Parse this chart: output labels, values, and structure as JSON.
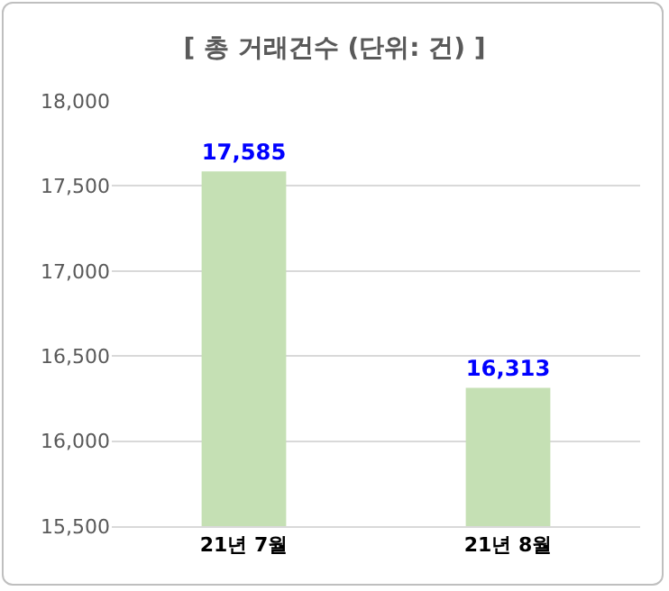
{
  "chart_data": {
    "type": "bar",
    "title": "[ 총 거래건수 (단위: 건) ]",
    "categories": [
      "21년 7월",
      "21년 8월"
    ],
    "values": [
      17585,
      16313
    ],
    "value_labels": [
      "17,585",
      "16,313"
    ],
    "color": "#c5e0b4",
    "ylim": [
      15500,
      18000
    ],
    "yticks": [
      {
        "value": 15500,
        "label": "15,500"
      },
      {
        "value": 16000,
        "label": "16,000"
      },
      {
        "value": 16500,
        "label": "16,500"
      },
      {
        "value": 17000,
        "label": "17,000"
      },
      {
        "value": 17500,
        "label": "17,500"
      },
      {
        "value": 18000,
        "label": "18,000"
      }
    ],
    "grid": "y"
  }
}
